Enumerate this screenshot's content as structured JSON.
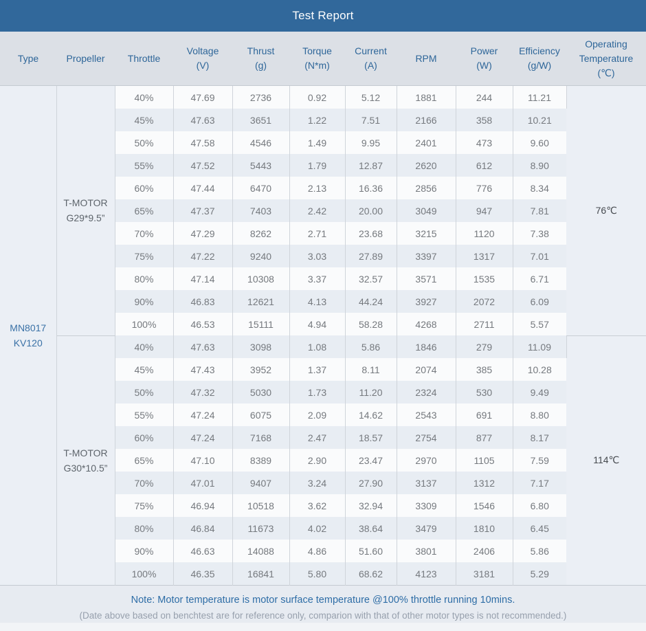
{
  "title": "Test Report",
  "columns": [
    {
      "id": "type",
      "label": "Type",
      "unit": ""
    },
    {
      "id": "propeller",
      "label": "Propeller",
      "unit": ""
    },
    {
      "id": "throttle",
      "label": "Throttle",
      "unit": ""
    },
    {
      "id": "voltage",
      "label": "Voltage",
      "unit": "(V)"
    },
    {
      "id": "thrust",
      "label": "Thrust",
      "unit": "(g)"
    },
    {
      "id": "torque",
      "label": "Torque",
      "unit": "(N*m)"
    },
    {
      "id": "current",
      "label": "Current",
      "unit": "(A)"
    },
    {
      "id": "rpm",
      "label": "RPM",
      "unit": ""
    },
    {
      "id": "power",
      "label": "Power",
      "unit": "(W)"
    },
    {
      "id": "efficiency",
      "label": "Efficiency",
      "unit": "(g/W)"
    },
    {
      "id": "operating_temperature",
      "label": "Operating Temperature",
      "unit": "(℃)"
    }
  ],
  "motor": {
    "type_lines": [
      "MN8017",
      "KV120"
    ]
  },
  "sections": [
    {
      "propeller_lines": [
        "T-MOTOR",
        "G29*9.5”"
      ],
      "temperature": "76℃",
      "rows": [
        [
          "40%",
          "47.69",
          "2736",
          "0.92",
          "5.12",
          "1881",
          "244",
          "11.21"
        ],
        [
          "45%",
          "47.63",
          "3651",
          "1.22",
          "7.51",
          "2166",
          "358",
          "10.21"
        ],
        [
          "50%",
          "47.58",
          "4546",
          "1.49",
          "9.95",
          "2401",
          "473",
          "9.60"
        ],
        [
          "55%",
          "47.52",
          "5443",
          "1.79",
          "12.87",
          "2620",
          "612",
          "8.90"
        ],
        [
          "60%",
          "47.44",
          "6470",
          "2.13",
          "16.36",
          "2856",
          "776",
          "8.34"
        ],
        [
          "65%",
          "47.37",
          "7403",
          "2.42",
          "20.00",
          "3049",
          "947",
          "7.81"
        ],
        [
          "70%",
          "47.29",
          "8262",
          "2.71",
          "23.68",
          "3215",
          "1120",
          "7.38"
        ],
        [
          "75%",
          "47.22",
          "9240",
          "3.03",
          "27.89",
          "3397",
          "1317",
          "7.01"
        ],
        [
          "80%",
          "47.14",
          "10308",
          "3.37",
          "32.57",
          "3571",
          "1535",
          "6.71"
        ],
        [
          "90%",
          "46.83",
          "12621",
          "4.13",
          "44.24",
          "3927",
          "2072",
          "6.09"
        ],
        [
          "100%",
          "46.53",
          "15111",
          "4.94",
          "58.28",
          "4268",
          "2711",
          "5.57"
        ]
      ]
    },
    {
      "propeller_lines": [
        "T-MOTOR",
        "G30*10.5”"
      ],
      "temperature": "114℃",
      "rows": [
        [
          "40%",
          "47.63",
          "3098",
          "1.08",
          "5.86",
          "1846",
          "279",
          "11.09"
        ],
        [
          "45%",
          "47.43",
          "3952",
          "1.37",
          "8.11",
          "2074",
          "385",
          "10.28"
        ],
        [
          "50%",
          "47.32",
          "5030",
          "1.73",
          "11.20",
          "2324",
          "530",
          "9.49"
        ],
        [
          "55%",
          "47.24",
          "6075",
          "2.09",
          "14.62",
          "2543",
          "691",
          "8.80"
        ],
        [
          "60%",
          "47.24",
          "7168",
          "2.47",
          "18.57",
          "2754",
          "877",
          "8.17"
        ],
        [
          "65%",
          "47.10",
          "8389",
          "2.90",
          "23.47",
          "2970",
          "1105",
          "7.59"
        ],
        [
          "70%",
          "47.01",
          "9407",
          "3.24",
          "27.90",
          "3137",
          "1312",
          "7.17"
        ],
        [
          "75%",
          "46.94",
          "10518",
          "3.62",
          "32.94",
          "3309",
          "1546",
          "6.80"
        ],
        [
          "80%",
          "46.84",
          "11673",
          "4.02",
          "38.64",
          "3479",
          "1810",
          "6.45"
        ],
        [
          "90%",
          "46.63",
          "14088",
          "4.86",
          "51.60",
          "3801",
          "2406",
          "5.86"
        ],
        [
          "100%",
          "46.35",
          "16841",
          "5.80",
          "68.62",
          "4123",
          "3181",
          "5.29"
        ]
      ]
    }
  ],
  "footer": {
    "note": "Note: Motor temperature is motor surface temperature @100% throttle running 10mins.",
    "disclaimer": "(Date above based on benchtest are for reference only, comparion with that of other motor types is not recommended.)"
  },
  "colors": {
    "title_bar_bg": "#31689b",
    "header_bg": "#dce0e6",
    "header_text": "#2e6699",
    "row_bg": "#fafbfc",
    "row_alt_bg": "#e8edf3",
    "merged_cell_bg": "#ebeff5",
    "note_text": "#2e6da6",
    "disclaimer_text": "#97a0ad"
  }
}
